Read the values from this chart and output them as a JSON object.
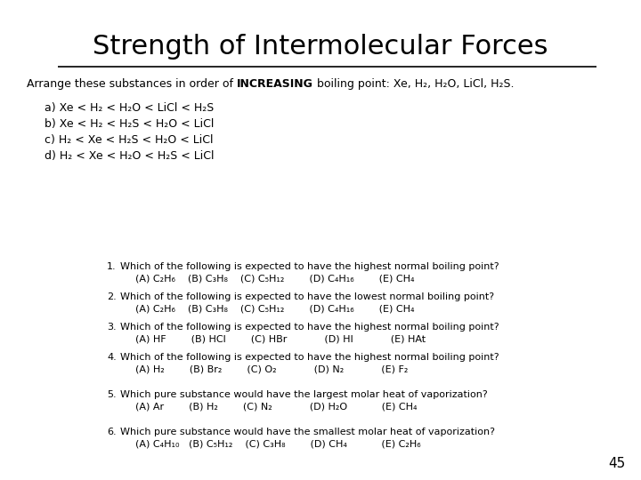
{
  "title": "Strength of Intermolecular Forces",
  "page_number": "45",
  "background_color": "#ffffff",
  "title_fontsize": 22,
  "body_fontsize": 9.0,
  "small_fontsize": 8.0,
  "intro_parts": [
    {
      "text": "Arrange these substances in order of ",
      "bold": false
    },
    {
      "text": "INCREASING",
      "bold": true
    },
    {
      "text": " boiling point: Xe, H₂, H₂O, LiCl, H₂S.",
      "bold": false
    }
  ],
  "options": [
    "a) Xe < H₂ < H₂O < LiCl < H₂S",
    "b) Xe < H₂ < H₂S < H₂O < LiCl",
    "c) H₂ < Xe < H₂S < H₂O < LiCl",
    "d) H₂ < Xe < H₂O < H₂S < LiCl"
  ],
  "questions": [
    {
      "num": "1.",
      "text": "Which of the following is expected to have the highest normal boiling point?",
      "choices": "(A) C₂H₆    (B) C₃H₈    (C) C₅H₁₂        (D) C₄H₁₆        (E) CH₄"
    },
    {
      "num": "2.",
      "text": "Which of the following is expected to have the lowest normal boiling point?",
      "choices": "(A) C₂H₆    (B) C₃H₈    (C) C₅H₁₂        (D) C₄H₁₆        (E) CH₄"
    },
    {
      "num": "3.",
      "text": "Which of the following is expected to have the highest normal boiling point?",
      "choices": "(A) HF        (B) HCl        (C) HBr            (D) HI            (E) HAt"
    },
    {
      "num": "4.",
      "text": "Which of the following is expected to have the highest normal boiling point?",
      "choices": "(A) H₂        (B) Br₂        (C) O₂            (D) N₂            (E) F₂"
    },
    {
      "num": "5.",
      "text": "Which pure substance would have the largest molar heat of vaporization?",
      "choices": "(A) Ar        (B) H₂        (C) N₂            (D) H₂O           (E) CH₄"
    },
    {
      "num": "6.",
      "text": "Which pure substance would have the smallest molar heat of vaporization?",
      "choices": "(A) C₄H₁₀   (B) C₅H₁₂    (C) C₃H₈        (D) CH₄           (E) C₂H₆"
    }
  ]
}
